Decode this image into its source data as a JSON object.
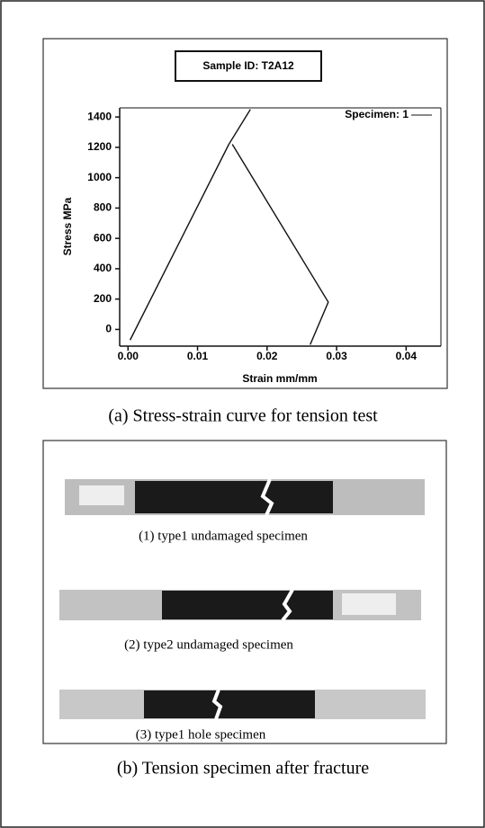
{
  "chart_data": {
    "type": "line",
    "title": "Sample ID: T2A12",
    "x_label": "Strain mm/mm",
    "y_label": "Stress MPa",
    "x": [
      0.0003,
      0.0145,
      0.0176,
      null,
      0.015,
      0.0288,
      0.0262
    ],
    "series": [
      {
        "name": "Specimen: 1",
        "color": "#111111",
        "values": [
          -70,
          1220,
          1450,
          null,
          1220,
          180,
          -100
        ]
      }
    ],
    "xlim": [
      -0.0012,
      0.045
    ],
    "ylim": [
      -110,
      1460
    ],
    "xticks": [
      {
        "value": 0,
        "label": "0.00"
      },
      0.01,
      0.02,
      0.03,
      0.04
    ],
    "yticks": [
      0,
      200,
      400,
      600,
      800,
      1000,
      1200,
      1400
    ],
    "grid": false,
    "legend": "top-right"
  },
  "caption_a": "(a) Stress-strain curve for tension test",
  "specimens": [
    "(1) type1 undamaged specimen",
    "(2) type2 undamaged specimen",
    "(3) type1 hole specimen"
  ],
  "caption_b": "(b) Tension specimen after fracture"
}
